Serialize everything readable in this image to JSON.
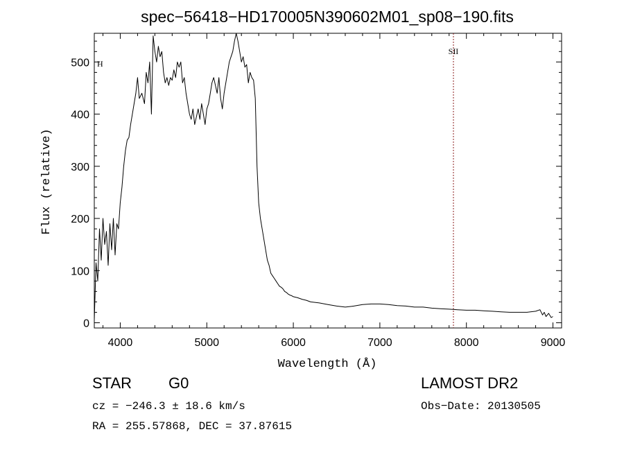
{
  "chart_data": {
    "type": "line",
    "title": "spec−56418−HD170005N390602M01_sp08−190.fits",
    "xlabel": "Wavelength (Å)",
    "ylabel": "Flux (relative)",
    "xlim": [
      3700,
      9100
    ],
    "ylim": [
      -10,
      555
    ],
    "x_ticks": [
      4000,
      5000,
      6000,
      7000,
      8000,
      9000
    ],
    "y_ticks": [
      0,
      100,
      200,
      300,
      400,
      500
    ],
    "x_tick_labels": [
      "4000",
      "5000",
      "6000",
      "7000",
      "8000",
      "9000"
    ],
    "y_tick_labels": [
      "0",
      "100",
      "200",
      "300",
      "400",
      "500"
    ],
    "grid": false,
    "line_color": "#000000",
    "series": [
      {
        "x": [
          3700,
          3720,
          3740,
          3760,
          3780,
          3800,
          3820,
          3840,
          3860,
          3880,
          3900,
          3920,
          3940,
          3960,
          3980,
          4000,
          4020,
          4040,
          4060,
          4080,
          4100,
          4120,
          4140,
          4160,
          4180,
          4200,
          4220,
          4250,
          4280,
          4300,
          4320,
          4340,
          4360,
          4380,
          4400,
          4420,
          4440,
          4460,
          4480,
          4500,
          4520,
          4540,
          4560,
          4580,
          4600,
          4620,
          4640,
          4660,
          4680,
          4700,
          4720,
          4740,
          4760,
          4780,
          4800,
          4820,
          4840,
          4860,
          4880,
          4900,
          4920,
          4940,
          4960,
          4980,
          5000,
          5020,
          5040,
          5060,
          5080,
          5100,
          5120,
          5140,
          5160,
          5180,
          5200,
          5220,
          5240,
          5260,
          5280,
          5300,
          5320,
          5340,
          5360,
          5380,
          5400,
          5420,
          5440,
          5460,
          5480,
          5500,
          5520,
          5540,
          5560,
          5580,
          5600,
          5620,
          5640,
          5660,
          5680,
          5700,
          5720,
          5740,
          5760,
          5780,
          5800,
          5820,
          5840,
          5860,
          5880,
          5900,
          5920,
          5940,
          5960,
          5980,
          6000,
          6050,
          6100,
          6150,
          6200,
          6300,
          6400,
          6500,
          6600,
          6700,
          6800,
          6900,
          7000,
          7100,
          7200,
          7300,
          7400,
          7500,
          7600,
          7700,
          7800,
          7900,
          8000,
          8100,
          8200,
          8300,
          8400,
          8500,
          8600,
          8700,
          8800,
          8850,
          8880,
          8900,
          8920,
          8950,
          8980,
          9000
        ],
        "y": [
          5,
          115,
          80,
          180,
          120,
          200,
          150,
          175,
          110,
          190,
          140,
          200,
          130,
          190,
          180,
          230,
          260,
          300,
          330,
          350,
          355,
          380,
          400,
          420,
          440,
          470,
          430,
          440,
          420,
          480,
          460,
          500,
          400,
          550,
          520,
          500,
          530,
          510,
          520,
          480,
          460,
          470,
          455,
          470,
          465,
          485,
          470,
          500,
          490,
          500,
          460,
          470,
          440,
          420,
          400,
          390,
          410,
          380,
          395,
          410,
          390,
          420,
          400,
          380,
          410,
          420,
          440,
          460,
          470,
          455,
          440,
          470,
          430,
          410,
          440,
          460,
          480,
          500,
          510,
          520,
          540,
          560,
          540,
          520,
          500,
          510,
          490,
          495,
          460,
          480,
          470,
          465,
          430,
          300,
          230,
          200,
          180,
          160,
          140,
          120,
          110,
          95,
          90,
          85,
          80,
          75,
          70,
          68,
          65,
          60,
          58,
          55,
          53,
          52,
          50,
          48,
          45,
          43,
          40,
          38,
          35,
          32,
          30,
          32,
          35,
          36,
          36,
          35,
          33,
          32,
          30,
          30,
          28,
          27,
          26,
          25,
          24,
          24,
          23,
          22,
          21,
          20,
          20,
          20,
          22,
          25,
          15,
          20,
          12,
          18,
          10,
          12
        ]
      }
    ],
    "annotations": [
      {
        "label": "SII",
        "x": 7850
      },
      {
        "label": "H",
        "x": 3700
      }
    ],
    "footer": {
      "object_class": "STAR",
      "subclass": "G0",
      "survey": "LAMOST DR2",
      "cz": "cz = −246.3 ± 18.6 km/s",
      "obs_date": "Obs−Date: 20130505",
      "coords": "RA = 255.57868, DEC =  37.87615"
    }
  }
}
